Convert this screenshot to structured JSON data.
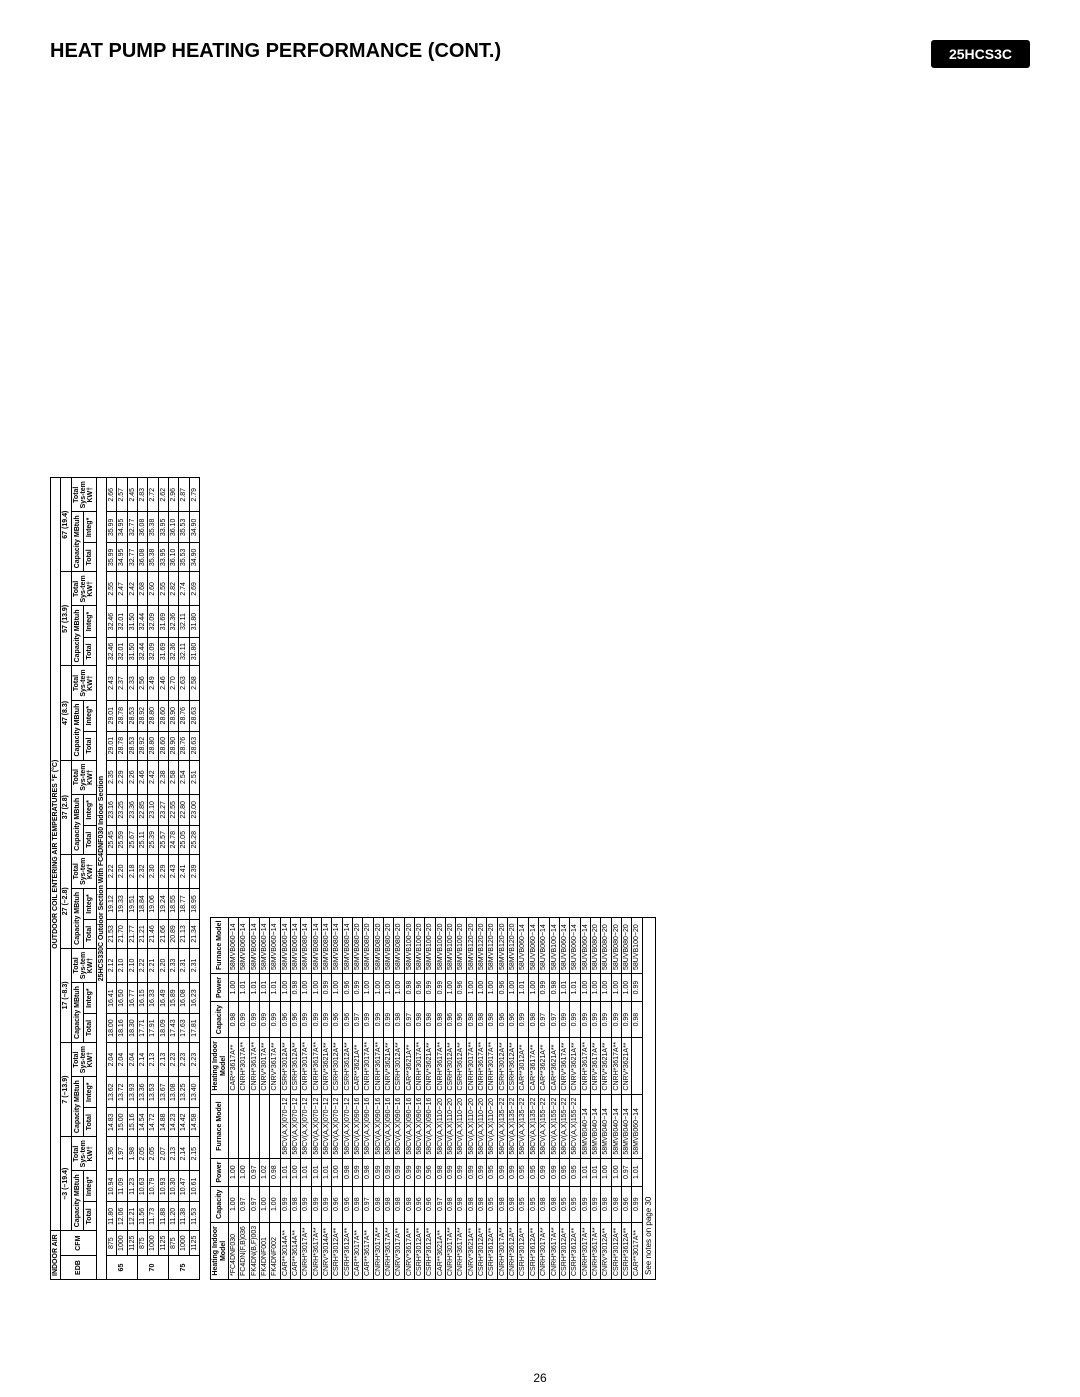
{
  "header": {
    "title": "HEAT PUMP HEATING PERFORMANCE (CONT.)",
    "model_badge": "25HCS3C"
  },
  "page_number": "26",
  "table1": {
    "outdoor_header": "OUTDOOR COIL ENTERING AIR TEMPERATURES °F (°C)",
    "indoor_header": "INDOOR AIR",
    "section_banner": "25HCS330C Outdoor Section With FC4DNF030 Indoor Section",
    "temp_groups": [
      {
        "label": "–3 (–19.4)"
      },
      {
        "label": "7 (–13.9)"
      },
      {
        "label": "17 (–8.3)"
      },
      {
        "label": "27 (–2.8)"
      },
      {
        "label": "37 (2.8)"
      },
      {
        "label": "47 (8.3)"
      },
      {
        "label": "57 (13.9)"
      },
      {
        "label": "67 (19.4)"
      }
    ],
    "col_labels": {
      "edb": "EDB",
      "cfm": "CFM",
      "cap": "Capacity MBtuh",
      "total": "Total",
      "integ": "Integ*",
      "kw": "Total Sys-tem KW†"
    },
    "rows": [
      {
        "edb": "65",
        "cfm": "875",
        "v": [
          "11.80",
          "10.94",
          "1.96",
          "14.83",
          "13.62",
          "2.04",
          "18.00",
          "16.41",
          "2.12",
          "21.53",
          "19.12",
          "2.22",
          "25.45",
          "23.16",
          "2.35",
          "29.01",
          "29.01",
          "2.43",
          "32.46",
          "32.46",
          "2.55",
          "35.99",
          "35.99",
          "2.66"
        ]
      },
      {
        "edb": "",
        "cfm": "1000",
        "v": [
          "12.06",
          "11.09",
          "1.97",
          "15.00",
          "13.72",
          "2.04",
          "18.16",
          "16.50",
          "2.10",
          "21.70",
          "19.33",
          "2.20",
          "25.59",
          "23.25",
          "2.29",
          "28.78",
          "28.78",
          "2.37",
          "32.01",
          "32.01",
          "2.47",
          "34.95",
          "34.95",
          "2.57"
        ]
      },
      {
        "edb": "",
        "cfm": "1125",
        "v": [
          "12.21",
          "11.23",
          "1.98",
          "15.16",
          "13.93",
          "2.04",
          "18.30",
          "16.77",
          "2.10",
          "21.77",
          "19.51",
          "2.18",
          "25.67",
          "23.36",
          "2.26",
          "28.53",
          "28.53",
          "2.33",
          "31.50",
          "31.50",
          "2.42",
          "32.77",
          "32.77",
          "2.45"
        ]
      },
      {
        "edb": "70",
        "cfm": "875",
        "v": [
          "11.56",
          "10.63",
          "2.05",
          "14.54",
          "13.36",
          "2.14",
          "17.71",
          "16.15",
          "2.22",
          "21.21",
          "18.84",
          "2.32",
          "25.11",
          "22.85",
          "2.46",
          "28.92",
          "28.92",
          "2.56",
          "32.44",
          "32.44",
          "2.68",
          "36.08",
          "36.08",
          "2.83"
        ]
      },
      {
        "edb": "",
        "cfm": "1000",
        "v": [
          "11.73",
          "10.79",
          "2.05",
          "14.72",
          "13.53",
          "2.13",
          "17.91",
          "16.33",
          "2.21",
          "21.46",
          "19.06",
          "2.30",
          "25.39",
          "23.10",
          "2.42",
          "28.80",
          "28.80",
          "2.49",
          "32.09",
          "32.09",
          "2.60",
          "35.38",
          "35.38",
          "2.72"
        ]
      },
      {
        "edb": "",
        "cfm": "1125",
        "v": [
          "11.88",
          "10.93",
          "2.07",
          "14.88",
          "13.67",
          "2.13",
          "18.09",
          "16.49",
          "2.20",
          "21.66",
          "19.24",
          "2.29",
          "25.57",
          "23.27",
          "2.38",
          "28.60",
          "28.60",
          "2.46",
          "31.69",
          "31.69",
          "2.55",
          "33.95",
          "33.95",
          "2.62"
        ]
      },
      {
        "edb": "75",
        "cfm": "875",
        "v": [
          "11.20",
          "10.30",
          "2.13",
          "14.23",
          "13.08",
          "2.23",
          "17.43",
          "15.89",
          "2.33",
          "20.89",
          "18.55",
          "2.43",
          "24.78",
          "22.55",
          "2.58",
          "28.90",
          "28.90",
          "2.70",
          "32.36",
          "32.36",
          "2.82",
          "36.10",
          "36.10",
          "2.96"
        ]
      },
      {
        "edb": "",
        "cfm": "1000",
        "v": [
          "11.38",
          "10.47",
          "2.14",
          "14.42",
          "13.25",
          "2.23",
          "17.63",
          "16.08",
          "2.31",
          "21.13",
          "18.77",
          "2.41",
          "25.05",
          "22.80",
          "2.54",
          "28.76",
          "28.76",
          "2.63",
          "32.11",
          "32.11",
          "2.74",
          "35.53",
          "35.53",
          "2.87"
        ]
      },
      {
        "edb": "",
        "cfm": "1125",
        "v": [
          "11.53",
          "10.61",
          "2.15",
          "14.58",
          "13.40",
          "2.23",
          "17.81",
          "16.23",
          "2.31",
          "21.34",
          "18.95",
          "2.39",
          "25.28",
          "23.00",
          "2.51",
          "28.63",
          "28.63",
          "2.58",
          "31.80",
          "31.80",
          "2.69",
          "34.90",
          "34.90",
          "2.79"
        ]
      }
    ]
  },
  "table2": {
    "headers": [
      "Heating Indoor Model",
      "Capacity",
      "Power",
      "Furnace Model",
      "Heating Indoor Model",
      "Capacity",
      "Power",
      "Furnace Model"
    ],
    "note": "See notes on page 30",
    "rows": [
      [
        "*FC4DNF030",
        "1.00",
        "1.00",
        "",
        "CAR**3617A**",
        "0.98",
        "1.00",
        "58MVB060−14"
      ],
      [
        "FC4DN(F,B)036",
        "0.97",
        "1.00",
        "",
        "CNRH*3017A**",
        "0.99",
        "1.01",
        "58MVB060−14"
      ],
      [
        "FK4DN(B,F)003",
        "0.97",
        "0.97",
        "",
        "CNRH*3617A**",
        "0.99",
        "1.01",
        "58MVB060−14"
      ],
      [
        "FK4DNF001",
        "1.00",
        "1.02",
        "",
        "CNRV*3017A**",
        "0.99",
        "1.01",
        "58MVB060−14"
      ],
      [
        "FK4DNF002",
        "1.00",
        "0.98",
        "",
        "CNRV*3617A**",
        "0.99",
        "1.01",
        "58MVB060−14"
      ],
      [
        "CAR**3014A**",
        "0.99",
        "1.01",
        "58CV(A,X)070−12",
        "CSRH*3012A**",
        "0.96",
        "1.00",
        "58MVB060−14"
      ],
      [
        "CAR**3614A**",
        "0.98",
        "1.00",
        "58CV(A,X)070−12",
        "CSRH*3612A**",
        "0.96",
        "0.98",
        "58MVB060−14"
      ],
      [
        "CNRH*3017A**",
        "0.99",
        "1.01",
        "58CV(A,X)070−12",
        "CNRH*3017A**",
        "0.99",
        "1.00",
        "58MVB080−14"
      ],
      [
        "CNRH*3617A**",
        "0.99",
        "1.01",
        "58CV(A,X)070−12",
        "CNRH*3617A**",
        "0.99",
        "1.00",
        "58MVB080−14"
      ],
      [
        "CNRV*3014A**",
        "0.99",
        "1.01",
        "58CV(A,X)070−12",
        "CNRV*3621A**",
        "0.99",
        "0.99",
        "58MVB080−14"
      ],
      [
        "CSRH*3012A**",
        "0.96",
        "1.00",
        "58CV(A,X)070−12",
        "CSRH*3012A**",
        "0.96",
        "1.00",
        "58MVB080−14"
      ],
      [
        "CSRH*3612A**",
        "0.96",
        "0.98",
        "58CV(A,X)070−12",
        "CSRH*3612A**",
        "0.96",
        "0.96",
        "58MVB080−14"
      ],
      [
        "CAR**3017A**",
        "0.98",
        "0.99",
        "58CV(A,X)090−16",
        "CAR**3621A**",
        "0.97",
        "0.99",
        "58MVB080−20"
      ],
      [
        "CAR**3617A**",
        "0.97",
        "0.98",
        "58CV(A,X)090−16",
        "CNRH*3017A**",
        "0.99",
        "1.00",
        "58MVB080−20"
      ],
      [
        "CNRH*3017A**",
        "0.98",
        "0.99",
        "58CV(A,X)090−16",
        "CNRH*3617A**",
        "0.99",
        "1.00",
        "58MVB080−20"
      ],
      [
        "CNRH*3617A**",
        "0.98",
        "0.99",
        "58CV(A,X)090−16",
        "CNRV*3621A**",
        "0.99",
        "1.00",
        "58MVB080−20"
      ],
      [
        "CNRV*3017A**",
        "0.98",
        "0.99",
        "58CV(A,X)090−16",
        "CSRH*3012A**",
        "0.98",
        "1.00",
        "58MVB080−20"
      ],
      [
        "CNRV*3617A**",
        "0.98",
        "0.99",
        "58CV(A,X)090−16",
        "CAR**3621A**",
        "0.97",
        "0.98",
        "58MVB100−20"
      ],
      [
        "CSRH*3012A**",
        "0.96",
        "0.99",
        "58CV(A,X)090−16",
        "CNRH*3017A**",
        "0.98",
        "0.96",
        "58MVB100−20"
      ],
      [
        "CSRH*3612A**",
        "0.96",
        "0.96",
        "58CV(A,X)090−16",
        "CNRV*3621A**",
        "0.98",
        "0.99",
        "58MVB100−20"
      ],
      [
        "CAR**3621A**",
        "0.97",
        "0.98",
        "58CV(A,X)110−20",
        "CNRH*3617A**",
        "0.98",
        "0.99",
        "58MVB100−20"
      ],
      [
        "CNRH*3017A**",
        "0.98",
        "0.99",
        "58CV(A,X)110−20",
        "CSRH*3012A**",
        "0.96",
        "1.00",
        "58MVB100−20"
      ],
      [
        "CNRH*3617A**",
        "0.98",
        "0.99",
        "58CV(A,X)110−20",
        "CSRH*3612A**",
        "0.96",
        "0.96",
        "58MVB100−20"
      ],
      [
        "CNRV*3621A**",
        "0.98",
        "0.99",
        "58CV(A,X)110−20",
        "CNRH*3017A**",
        "0.98",
        "1.00",
        "58MVB120−20"
      ],
      [
        "CSRH*3012A**",
        "0.98",
        "0.99",
        "58CV(A,X)110−20",
        "CNRH*3617A**",
        "0.98",
        "1.00",
        "58MVB120−20"
      ],
      [
        "CSRH*3612A**",
        "0.95",
        "0.95",
        "58CV(A,X)110−20",
        "CNRH*3017A**",
        "0.98",
        "1.00",
        "58MVB120−20"
      ],
      [
        "CNRH*3017A**",
        "0.98",
        "0.99",
        "58CV(A,X)135−22",
        "CSRH*3012A**",
        "0.96",
        "0.96",
        "58MVB120−20"
      ],
      [
        "CNRH*3612A**",
        "0.98",
        "0.99",
        "58CV(A,X)135−22",
        "CSRH*3612A**",
        "0.96",
        "1.00",
        "58MVB120−20"
      ],
      [
        "CSRH*3012A**",
        "0.95",
        "0.95",
        "58CV(A,X)135−22",
        "CAR**3012A**",
        "0.99",
        "1.01",
        "58UVB060−14"
      ],
      [
        "CSRH*3612A**",
        "0.95",
        "0.95",
        "58CV(A,X)135−22",
        "CAR**3617A**",
        "0.98",
        "1.00",
        "58UVB060−14"
      ],
      [
        "CNRH*3017A**",
        "0.98",
        "0.99",
        "58CV(A,X)155−22",
        "CAR**3621A**",
        "0.97",
        "0.99",
        "58UVB060−14"
      ],
      [
        "CNRH*3617A**",
        "0.98",
        "0.99",
        "58CV(A,X)155−22",
        "CAR**3621A**",
        "0.97",
        "0.98",
        "58UVB100−14"
      ],
      [
        "CSRH*3012A**",
        "0.95",
        "0.95",
        "58CV(A,X)155−22",
        "CNRV*3617A**",
        "0.99",
        "1.01",
        "58UVB060−14"
      ],
      [
        "CSRH*3612A**",
        "0.95",
        "0.95",
        "58CV(A,X)155−22",
        "CNRV*3621A**",
        "0.99",
        "1.01",
        "58UVB060−14"
      ],
      [
        "CNRH*3017A**",
        "0.99",
        "1.01",
        "58MVB040−14",
        "CNRH*3617A**",
        "0.99",
        "1.00",
        "58UVB060−14"
      ],
      [
        "CNRH*3617A**",
        "0.99",
        "1.01",
        "58MVB040−14",
        "CNRV*3617A**",
        "0.99",
        "1.00",
        "58UVB080−20"
      ],
      [
        "CNRV*3012A**",
        "0.98",
        "1.00",
        "58MVB040−14",
        "CNRV*3621A**",
        "0.99",
        "1.00",
        "58UVB080−20"
      ],
      [
        "CSRH*3012A**",
        "0.98",
        "1.00",
        "58MVB040−14",
        "CNRH*3617A**",
        "0.99",
        "1.00",
        "58UVB080−20"
      ],
      [
        "CSRH*3612A**",
        "0.96",
        "0.97",
        "58MVB040−14",
        "CNRV*3621A**",
        "0.99",
        "1.00",
        "58UVB080−20"
      ],
      [
        "CAR**3017A**",
        "0.99",
        "1.01",
        "58MVB060−14",
        "",
        "0.98",
        "0.99",
        "58UVB100−20"
      ]
    ]
  }
}
